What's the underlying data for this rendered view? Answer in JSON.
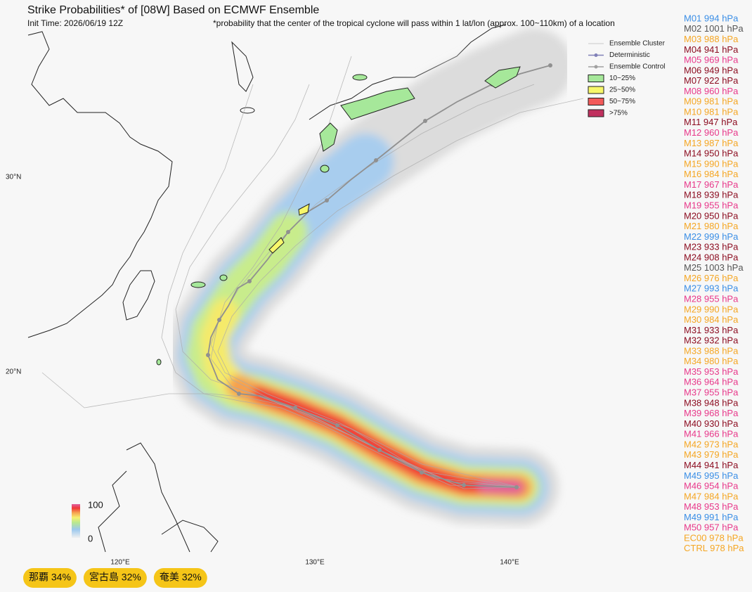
{
  "header": {
    "title": "Strike Probabilities* of [08W] Based on ECMWF Ensemble",
    "init_time": "Init Time: 2026/06/19 12Z",
    "note": "*probability that the center of the tropical cyclone will pass within 1 lat/lon (approx. 100~110km) of a location"
  },
  "legend": [
    {
      "label": "Ensemble Cluster",
      "kind": "line",
      "color": "#c8c8c8"
    },
    {
      "label": "Deterministic",
      "kind": "dot-line",
      "color": "#8080b8"
    },
    {
      "label": "Ensemble Control",
      "kind": "dot-line",
      "color": "#a0a0a0"
    },
    {
      "label": "10~25%",
      "kind": "box",
      "color": "#a6e89a"
    },
    {
      "label": "25~50%",
      "kind": "box",
      "color": "#f7f76a"
    },
    {
      "label": "50~75%",
      "kind": "box",
      "color": "#f25a5a"
    },
    {
      "label": ">75%",
      "kind": "box",
      "color": "#c0305e"
    }
  ],
  "lat_labels": [
    "30°N",
    "20°N"
  ],
  "lon_labels": [
    "120°E",
    "130°E",
    "140°E"
  ],
  "colorbar": {
    "max": "100",
    "min": "0"
  },
  "members": [
    {
      "label": "M01 994 hPa",
      "color": "#3a8ee6"
    },
    {
      "label": "M02 1001 hPa",
      "color": "#555555"
    },
    {
      "label": "M03 988 hPa",
      "color": "#f5a623"
    },
    {
      "label": "M04 941 hPa",
      "color": "#8b0a1e"
    },
    {
      "label": "M05 969 hPa",
      "color": "#e8388a"
    },
    {
      "label": "M06 949 hPa",
      "color": "#8b0a1e"
    },
    {
      "label": "M07 922 hPa",
      "color": "#8b0a1e"
    },
    {
      "label": "M08 960 hPa",
      "color": "#e8388a"
    },
    {
      "label": "M09 981 hPa",
      "color": "#f5a623"
    },
    {
      "label": "M10 981 hPa",
      "color": "#f5a623"
    },
    {
      "label": "M11 947 hPa",
      "color": "#8b0a1e"
    },
    {
      "label": "M12 960 hPa",
      "color": "#e8388a"
    },
    {
      "label": "M13 987 hPa",
      "color": "#f5a623"
    },
    {
      "label": "M14 950 hPa",
      "color": "#8b0a1e"
    },
    {
      "label": "M15 990 hPa",
      "color": "#f5a623"
    },
    {
      "label": "M16 984 hPa",
      "color": "#f5a623"
    },
    {
      "label": "M17 967 hPa",
      "color": "#e8388a"
    },
    {
      "label": "M18 939 hPa",
      "color": "#8b0a1e"
    },
    {
      "label": "M19 955 hPa",
      "color": "#e8388a"
    },
    {
      "label": "M20 950 hPa",
      "color": "#8b0a1e"
    },
    {
      "label": "M21 980 hPa",
      "color": "#f5a623"
    },
    {
      "label": "M22 999 hPa",
      "color": "#3a8ee6"
    },
    {
      "label": "M23 933 hPa",
      "color": "#8b0a1e"
    },
    {
      "label": "M24 908 hPa",
      "color": "#8b0a1e"
    },
    {
      "label": "M25 1003 hPa",
      "color": "#555555"
    },
    {
      "label": "M26 976 hPa",
      "color": "#f5a623"
    },
    {
      "label": "M27 993 hPa",
      "color": "#3a8ee6"
    },
    {
      "label": "M28 955 hPa",
      "color": "#e8388a"
    },
    {
      "label": "M29 990 hPa",
      "color": "#f5a623"
    },
    {
      "label": "M30 984 hPa",
      "color": "#f5a623"
    },
    {
      "label": "M31 933 hPa",
      "color": "#8b0a1e"
    },
    {
      "label": "M32 932 hPa",
      "color": "#8b0a1e"
    },
    {
      "label": "M33 988 hPa",
      "color": "#f5a623"
    },
    {
      "label": "M34 980 hPa",
      "color": "#f5a623"
    },
    {
      "label": "M35 953 hPa",
      "color": "#e8388a"
    },
    {
      "label": "M36 964 hPa",
      "color": "#e8388a"
    },
    {
      "label": "M37 955 hPa",
      "color": "#e8388a"
    },
    {
      "label": "M38 948 hPa",
      "color": "#8b0a1e"
    },
    {
      "label": "M39 968 hPa",
      "color": "#e8388a"
    },
    {
      "label": "M40 930 hPa",
      "color": "#8b0a1e"
    },
    {
      "label": "M41 966 hPa",
      "color": "#e8388a"
    },
    {
      "label": "M42 973 hPa",
      "color": "#f5a623"
    },
    {
      "label": "M43 979 hPa",
      "color": "#f5a623"
    },
    {
      "label": "M44 941 hPa",
      "color": "#8b0a1e"
    },
    {
      "label": "M45 995 hPa",
      "color": "#3a8ee6"
    },
    {
      "label": "M46 954 hPa",
      "color": "#e8388a"
    },
    {
      "label": "M47 984 hPa",
      "color": "#f5a623"
    },
    {
      "label": "M48 953 hPa",
      "color": "#e8388a"
    },
    {
      "label": "M49 991 hPa",
      "color": "#3a8ee6"
    },
    {
      "label": "M50 957 hPa",
      "color": "#e8388a"
    },
    {
      "label": "EC00 978 hPa",
      "color": "#f5a623"
    },
    {
      "label": "CTRL 978 hPa",
      "color": "#f5a623"
    }
  ],
  "badges": [
    "那覇 34%",
    "宮古島 32%",
    "奄美 32%"
  ]
}
